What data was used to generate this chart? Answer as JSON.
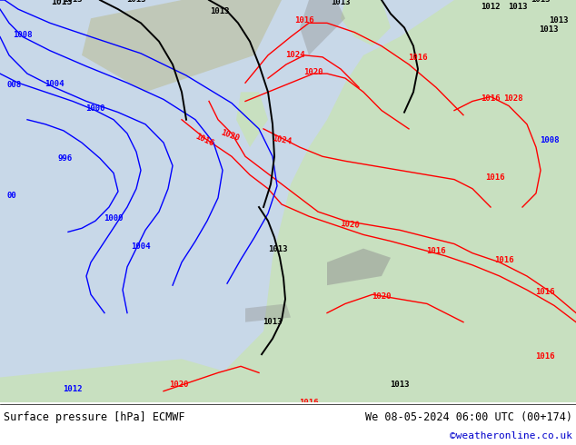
{
  "title_left": "Surface pressure [hPa] ECMWF",
  "title_right": "We 08-05-2024 06:00 UTC (00+174)",
  "credit": "©weatheronline.co.uk",
  "bg_color": "#f0f0f0",
  "map_bg_light": "#ddeedd",
  "map_bg_ocean": "#e8eef8",
  "bottom_bar_color": "#ffffff",
  "title_font_size": 9,
  "credit_color": "#0000cc",
  "fig_width": 6.34,
  "fig_height": 4.9
}
